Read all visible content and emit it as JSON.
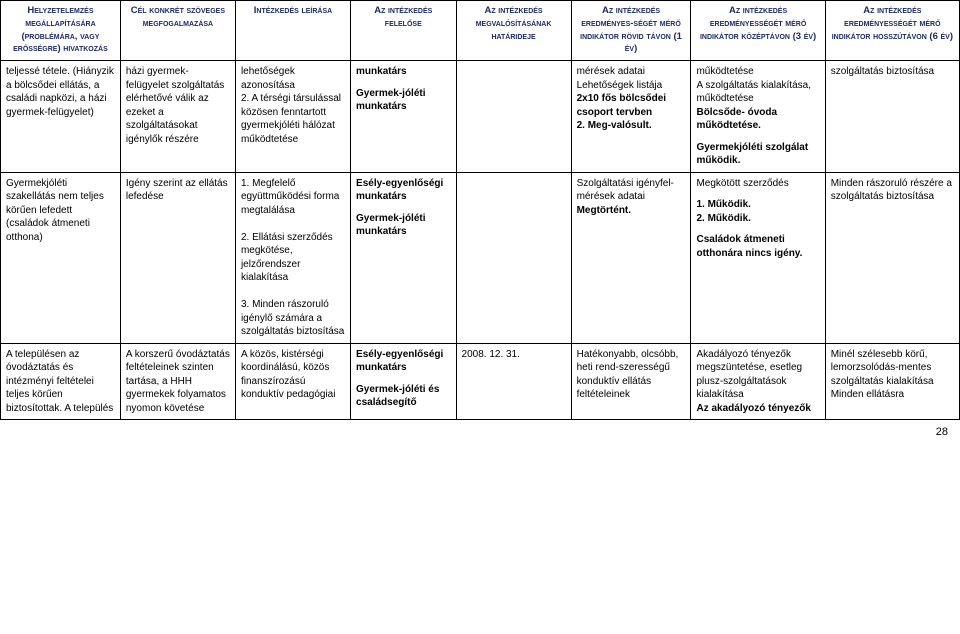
{
  "headers": [
    "Helyzetelemzés megállapítására (problémára, vagy erősségre) hivatkozás",
    "Cél konkrét szöveges megfogalmazása",
    "Intézkedés leírása",
    "Az intézkedés felelőse",
    "Az intézkedés megvalósításának határideje",
    "Az intézkedés eredményes-ségét mérő indikátor rövid távon (1 év)",
    "Az intézkedés eredményességét mérő indikátor középtávon (3 év)",
    "Az intézkedés eredményességét mérő indikátor hosszútávon (6 év)"
  ],
  "rows": [
    {
      "c0": "teljessé tétele. (Hiányzik a bölcsődei ellátás, a családi napközi, a házi gyermek-felügyelet)",
      "c1": "házi gyermek-felügyelet szolgáltatás elérhetővé válik az ezeket a szolgáltatásokat igénylők részére",
      "c2": "lehetőségek azonosítása\n2. A térségi társulással közösen fenntartott gyermekjóléti hálózat működtetése",
      "c3_parts": [
        {
          "text": "munkatárs",
          "bold": true
        },
        {
          "text": "",
          "bold": false
        },
        {
          "text": "Gyermek-jóléti munkatárs",
          "bold": true
        }
      ],
      "c4": "",
      "c5_parts": [
        {
          "text": "mérések adatai",
          "bold": false
        },
        {
          "text": "Lehetőségek listája",
          "bold": false
        },
        {
          "text": "2x10 fős bölcsődei csoport tervben",
          "bold": true
        },
        {
          "text": "2. Meg-valósult.",
          "bold": true
        }
      ],
      "c6_parts": [
        {
          "text": "működtetése",
          "bold": false
        },
        {
          "text": "A szolgáltatás kialakítása, működtetése",
          "bold": false
        },
        {
          "text": "Bölcsőde- óvoda működtetése.",
          "bold": true
        },
        {
          "text": "",
          "bold": false
        },
        {
          "text": "Gyermekjóléti szolgálat működik.",
          "bold": true
        }
      ],
      "c7": "szolgáltatás biztosítása"
    },
    {
      "c0": "Gyermekjóléti szakellátás nem teljes körűen lefedett (családok átmeneti otthona)",
      "c1": "Igény szerint az ellátás lefedése",
      "c2": "1. Megfelelő együttműködési forma megtalálása\n\n2. Ellátási szerződés megkötése, jelzőrendszer kialakítása\n\n3. Minden rászoruló igénylő számára a szolgáltatás biztosítása",
      "c3_parts": [
        {
          "text": "Esély-egyenlőségi munkatárs",
          "bold": true
        },
        {
          "text": "",
          "bold": false
        },
        {
          "text": "Gyermek-jóléti munkatárs",
          "bold": true
        }
      ],
      "c4": "",
      "c5_parts": [
        {
          "text": "Szolgáltatási igényfel-mérések adatai",
          "bold": false
        },
        {
          "text": "Megtörtént.",
          "bold": true
        }
      ],
      "c6_parts": [
        {
          "text": "Megkötött szerződés",
          "bold": false
        },
        {
          "text": "",
          "bold": false
        },
        {
          "text": "1. Működik.",
          "bold": true
        },
        {
          "text": "2. Működik.",
          "bold": true
        },
        {
          "text": "",
          "bold": false
        },
        {
          "text": "Családok átmeneti otthonára nincs igény.",
          "bold": true
        }
      ],
      "c7": "Minden rászoruló részére a szolgáltatás biztosítása"
    },
    {
      "c0": "A településen az óvodáztatás és intézményi feltételei teljes körűen biztosítottak. A település",
      "c1": "A korszerű óvodáztatás feltételeinek szinten tartása, a HHH gyermekek folyamatos nyomon követése",
      "c2": "A közös, kistérségi koordinálású, közös finanszírozású konduktív pedagógiai",
      "c3_parts": [
        {
          "text": "Esély-egyenlőségi munkatárs",
          "bold": true
        },
        {
          "text": "",
          "bold": false
        },
        {
          "text": "Gyermek-jóléti és családsegítő",
          "bold": true
        }
      ],
      "c4": "2008. 12. 31.",
      "c5_parts": [
        {
          "text": "Hatékonyabb, olcsóbb, heti rend-szerességű konduktív ellátás feltételeinek",
          "bold": false
        }
      ],
      "c6_parts": [
        {
          "text": "Akadályozó tényezők megszüntetése, esetleg plusz-szolgáltatások kialakítása",
          "bold": false
        },
        {
          "text": "Az akadályozó tényezők",
          "bold": true
        }
      ],
      "c7": "Minél szélesebb körű, lemorzsolódás-mentes szolgáltatás kialakítása\nMinden ellátásra"
    }
  ],
  "column_widths": [
    "12.5%",
    "12%",
    "12%",
    "11%",
    "12%",
    "12.5%",
    "14%",
    "14%"
  ],
  "page_number": "28"
}
